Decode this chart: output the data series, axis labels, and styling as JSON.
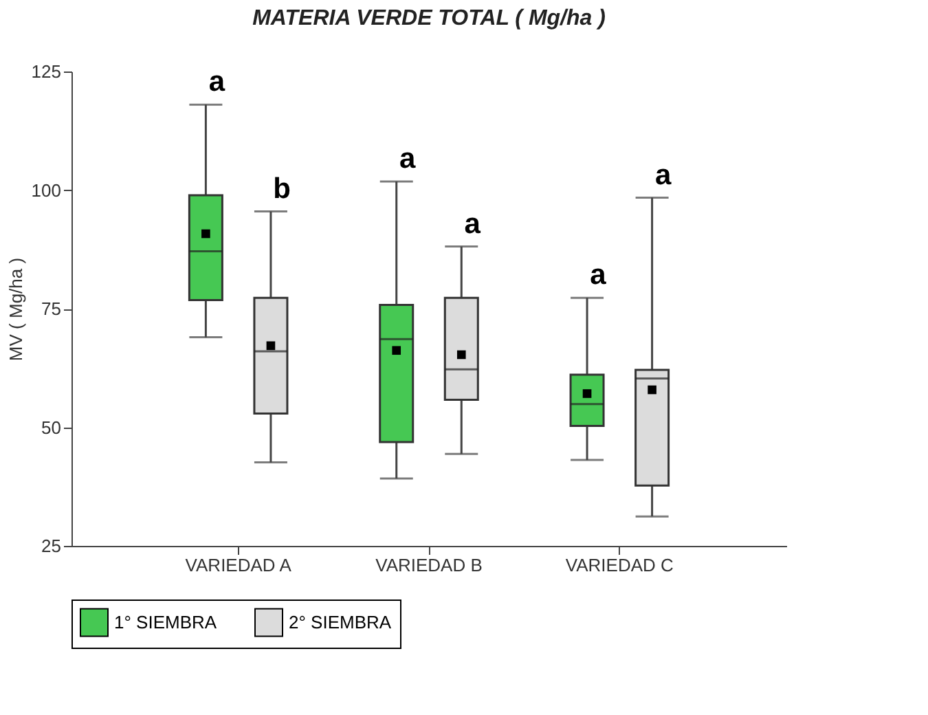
{
  "chart_data": {
    "type": "box",
    "title": "MATERIA VERDE TOTAL ( Mg/ha )",
    "ylabel": "MV ( Mg/ha )",
    "categories": [
      "VARIEDAD A",
      "VARIEDAD B",
      "VARIEDAD C"
    ],
    "ylim": [
      25,
      125
    ],
    "yticks": [
      25,
      50,
      75,
      100,
      125
    ],
    "grid": false,
    "legend": "bottom",
    "series": [
      {
        "name": "1° SIEMBRA",
        "color": "#46c853",
        "boxes": [
          {
            "low": 69,
            "q1": 76.8,
            "median": 87.1,
            "q3": 98.9,
            "high": 118,
            "mean": 90.8
          },
          {
            "low": 39.2,
            "q1": 46.9,
            "median": 68.6,
            "q3": 75.8,
            "high": 101.8,
            "mean": 66.2
          },
          {
            "low": 43.1,
            "q1": 50.3,
            "median": 54.9,
            "q3": 61.1,
            "high": 77.3,
            "mean": 57.1
          }
        ]
      },
      {
        "name": "2° SIEMBRA",
        "color": "#dcdcdc",
        "boxes": [
          {
            "low": 42.6,
            "q1": 52.9,
            "median": 66,
            "q3": 77.3,
            "high": 95.5,
            "mean": 67.2
          },
          {
            "low": 44.4,
            "q1": 55.8,
            "median": 62.2,
            "q3": 77.3,
            "high": 88.1,
            "mean": 65.3
          },
          {
            "low": 31.2,
            "q1": 37.7,
            "median": 60.3,
            "q3": 62.1,
            "high": 98.4,
            "mean": 57.9
          }
        ]
      }
    ],
    "annotations": [
      "a",
      "b",
      "a",
      "a",
      "a",
      "a"
    ]
  }
}
